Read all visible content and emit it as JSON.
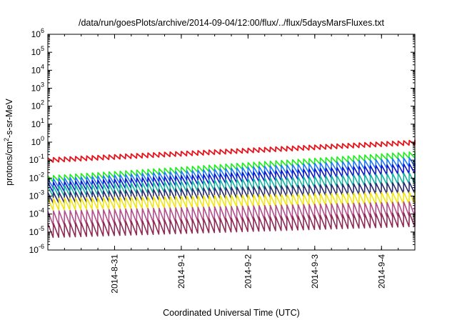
{
  "chart_data": {
    "type": "line",
    "title": "/data/run/goesPlots/archive/2014-09-04/12:00/flux/../flux/5daysMarsFluxes.txt",
    "xlabel": "Coordinated Universal Time (UTC)",
    "ylabel": {
      "prefix": "protons/cm",
      "sup": "2",
      "suffix": "-s-sr-MeV"
    },
    "x_scale": "time",
    "y_scale": "log",
    "xlim": [
      "2014-08-30T00:00",
      "2014-09-04T12:00"
    ],
    "ylim": [
      1e-06,
      1000000.0
    ],
    "x_ticks": [
      {
        "value": "2014-08-31",
        "label": "2014-8-31"
      },
      {
        "value": "2014-09-01",
        "label": "2014-9-1"
      },
      {
        "value": "2014-09-02",
        "label": "2014-9-2"
      },
      {
        "value": "2014-09-03",
        "label": "2014-9-3"
      },
      {
        "value": "2014-09-04",
        "label": "2014-9-4"
      }
    ],
    "y_ticks": [
      {
        "exp": "-6"
      },
      {
        "exp": "-5"
      },
      {
        "exp": "-4"
      },
      {
        "exp": "-3"
      },
      {
        "exp": "-2"
      },
      {
        "exp": "-1"
      },
      {
        "exp": "0"
      },
      {
        "exp": "1"
      },
      {
        "exp": "2"
      },
      {
        "exp": "3"
      },
      {
        "exp": "4"
      },
      {
        "exp": "5"
      },
      {
        "exp": "6"
      }
    ],
    "y_tick_base": "10",
    "grid": false,
    "legend": "none",
    "period_hours": 2,
    "series": [
      {
        "color": "#e8141c",
        "kind": "jump",
        "base": 0.1,
        "end": 0.95,
        "amp": 1.8,
        "steps": [
          {
            "t": "2014-08-30T00:30",
            "to": 0.09
          },
          {
            "t": "2014-08-30T13:30",
            "to": 0.8
          },
          {
            "t": "2014-09-01T12:00",
            "to": 0.6
          }
        ]
      },
      {
        "color": "#19f019",
        "kind": "saw",
        "base": 0.009,
        "end": 0.2,
        "amp": 2.2
      },
      {
        "color": "#1e78ff",
        "kind": "saw",
        "base": 0.005,
        "end": 0.08,
        "amp": 3.2
      },
      {
        "color": "#0a14c8",
        "kind": "saw",
        "base": 0.003,
        "end": 0.035,
        "amp": 3.5
      },
      {
        "color": "#14b4a0",
        "kind": "saw",
        "base": 0.0018,
        "end": 0.01,
        "amp": 4.0
      },
      {
        "color": "#2a2a70",
        "kind": "saw",
        "base": 0.0008,
        "end": 0.003,
        "amp": 4.0
      },
      {
        "color": "#f0e614",
        "kind": "saw",
        "base": 0.00035,
        "end": 0.0008,
        "amp": 4.5
      },
      {
        "color": "#b24f8a",
        "kind": "saw",
        "base": 6e-05,
        "end": 0.0002,
        "amp": 6.0
      },
      {
        "color": "#8c2a55",
        "kind": "saw",
        "base": 1.2e-05,
        "end": 5e-05,
        "amp": 6.0
      }
    ]
  }
}
